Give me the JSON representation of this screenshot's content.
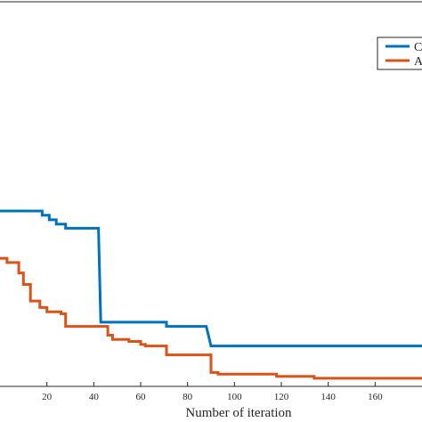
{
  "chart_data": {
    "type": "line",
    "title": "",
    "xlabel": "Number of iteration",
    "ylabel": "",
    "xlim": [
      0,
      180
    ],
    "ylim": [
      0,
      100
    ],
    "x_ticks": [
      20,
      40,
      60,
      80,
      100,
      120,
      140,
      160
    ],
    "grid": false,
    "legend_position": "top-right",
    "legend": [
      "C",
      "A"
    ],
    "series": [
      {
        "name": "C",
        "color": "#0072BD",
        "points": [
          [
            0,
            45.6
          ],
          [
            15,
            45.6
          ],
          [
            18,
            45.6
          ],
          [
            18,
            44.5
          ],
          [
            21,
            44.5
          ],
          [
            21,
            43.3
          ],
          [
            24,
            43.3
          ],
          [
            24,
            42.2
          ],
          [
            28,
            42.2
          ],
          [
            28,
            41.1
          ],
          [
            42,
            41.1
          ],
          [
            43,
            16.7
          ],
          [
            71,
            16.7
          ],
          [
            71,
            15.6
          ],
          [
            88,
            15.6
          ],
          [
            90,
            10.5
          ],
          [
            180,
            10.5
          ]
        ]
      },
      {
        "name": "A",
        "color": "#D95319",
        "points": [
          [
            0,
            33.3
          ],
          [
            3,
            33.3
          ],
          [
            3,
            32.2
          ],
          [
            8,
            32.2
          ],
          [
            8,
            29.5
          ],
          [
            10,
            29.5
          ],
          [
            10,
            26.5
          ],
          [
            13,
            26.5
          ],
          [
            13,
            22.2
          ],
          [
            17,
            22.2
          ],
          [
            17,
            20.5
          ],
          [
            20,
            20.5
          ],
          [
            20,
            19.4
          ],
          [
            26,
            19.4
          ],
          [
            26,
            18.9
          ],
          [
            28,
            18.9
          ],
          [
            28,
            15.6
          ],
          [
            46,
            15.6
          ],
          [
            46,
            13.3
          ],
          [
            48,
            13.3
          ],
          [
            48,
            12.2
          ],
          [
            55,
            12.2
          ],
          [
            55,
            11.7
          ],
          [
            60,
            11.7
          ],
          [
            60,
            10.9
          ],
          [
            62,
            10.9
          ],
          [
            62,
            10.5
          ],
          [
            71,
            10.5
          ],
          [
            71,
            8.2
          ],
          [
            90,
            8.2
          ],
          [
            90,
            3.6
          ],
          [
            93,
            3.6
          ],
          [
            93,
            3.2
          ],
          [
            118,
            3.2
          ],
          [
            118,
            2.6
          ],
          [
            134,
            2.6
          ],
          [
            134,
            2.1
          ],
          [
            180,
            2.1
          ]
        ]
      }
    ]
  }
}
